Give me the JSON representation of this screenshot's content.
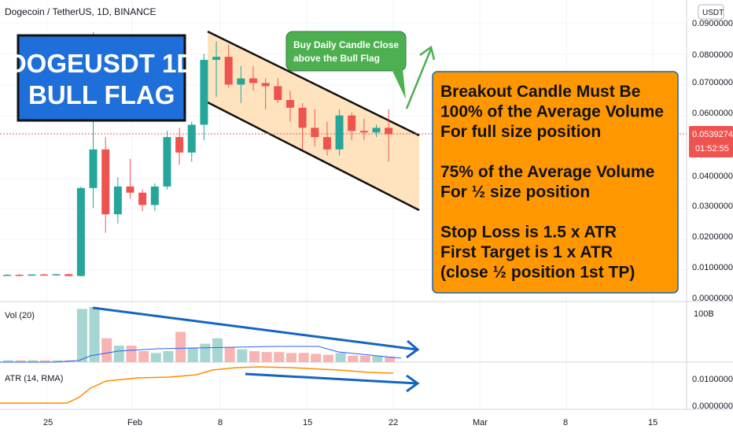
{
  "header": {
    "symbol_title": "Dogecoin / TetherUS, 1D, BINANCE",
    "currency_badge": "USDT"
  },
  "price_axis": {
    "ticks": [
      "0.0900000",
      "0.0800000",
      "0.0700000",
      "0.0600000",
      "0.0400000",
      "0.0300000",
      "0.0200000",
      "0.0100000",
      "0.0000000"
    ],
    "current_price": "0.0539274",
    "countdown": "01:52:55"
  },
  "volume_pane": {
    "label": "Vol (20)",
    "axis_label": "100B"
  },
  "atr_pane": {
    "label": "ATR (14, RMA)",
    "ticks": [
      "0.0100000",
      "0.0000000"
    ]
  },
  "time_axis": {
    "ticks": [
      "25",
      "Feb",
      "8",
      "15",
      "22",
      "Mar",
      "8",
      "15"
    ]
  },
  "annotations": {
    "title_line1": "DOGEUSDT 1D",
    "title_line2": "BULL FLAG",
    "callout_line1": "Buy Daily Candle Close",
    "callout_line2": "above the Bull Flag",
    "rules": [
      "Breakout Candle Must Be",
      "100% of the Average Volume",
      "For full size position",
      "",
      "75% of the Average Volume",
      "For ½ size position",
      "",
      "Stop Loss is 1.5 x ATR",
      "First Target is 1 x ATR",
      "(close ½ position 1st TP)"
    ]
  },
  "colors": {
    "up": "#26a69a",
    "down": "#ef5350",
    "flag_fill": "#ffd9a8",
    "box_orange": "#ff9800",
    "title_blue": "#1e6fd9",
    "callout_green": "#4caf50",
    "arrow_blue": "#1565c0",
    "atr_line": "#ff8c00"
  },
  "chart_data": [
    {
      "type": "candlestick",
      "title": "Dogecoin / TetherUS, 1D, BINANCE",
      "ylim": [
        0,
        0.09
      ],
      "candles": [
        {
          "o": 0.0083,
          "h": 0.0086,
          "l": 0.0081,
          "c": 0.0084
        },
        {
          "o": 0.0084,
          "h": 0.0087,
          "l": 0.0082,
          "c": 0.0083
        },
        {
          "o": 0.0083,
          "h": 0.0086,
          "l": 0.0082,
          "c": 0.0085
        },
        {
          "o": 0.0085,
          "h": 0.0088,
          "l": 0.0083,
          "c": 0.0084
        },
        {
          "o": 0.0084,
          "h": 0.0087,
          "l": 0.0082,
          "c": 0.0086
        },
        {
          "o": 0.0086,
          "h": 0.0088,
          "l": 0.0081,
          "c": 0.008
        },
        {
          "o": 0.008,
          "h": 0.037,
          "l": 0.0079,
          "c": 0.0365
        },
        {
          "o": 0.0365,
          "h": 0.087,
          "l": 0.03,
          "c": 0.049
        },
        {
          "o": 0.049,
          "h": 0.053,
          "l": 0.022,
          "c": 0.028
        },
        {
          "o": 0.028,
          "h": 0.04,
          "l": 0.025,
          "c": 0.037
        },
        {
          "o": 0.037,
          "h": 0.046,
          "l": 0.033,
          "c": 0.035
        },
        {
          "o": 0.035,
          "h": 0.036,
          "l": 0.029,
          "c": 0.031
        },
        {
          "o": 0.031,
          "h": 0.038,
          "l": 0.029,
          "c": 0.037
        },
        {
          "o": 0.037,
          "h": 0.055,
          "l": 0.036,
          "c": 0.053
        },
        {
          "o": 0.053,
          "h": 0.056,
          "l": 0.044,
          "c": 0.048
        },
        {
          "o": 0.048,
          "h": 0.058,
          "l": 0.045,
          "c": 0.057
        },
        {
          "o": 0.057,
          "h": 0.08,
          "l": 0.052,
          "c": 0.078
        },
        {
          "o": 0.078,
          "h": 0.084,
          "l": 0.066,
          "c": 0.079
        },
        {
          "o": 0.079,
          "h": 0.083,
          "l": 0.069,
          "c": 0.07
        },
        {
          "o": 0.07,
          "h": 0.076,
          "l": 0.064,
          "c": 0.072
        },
        {
          "o": 0.072,
          "h": 0.076,
          "l": 0.068,
          "c": 0.0705
        },
        {
          "o": 0.0705,
          "h": 0.072,
          "l": 0.062,
          "c": 0.0695
        },
        {
          "o": 0.0695,
          "h": 0.072,
          "l": 0.064,
          "c": 0.065
        },
        {
          "o": 0.065,
          "h": 0.068,
          "l": 0.058,
          "c": 0.0625
        },
        {
          "o": 0.0625,
          "h": 0.064,
          "l": 0.049,
          "c": 0.056
        },
        {
          "o": 0.056,
          "h": 0.062,
          "l": 0.05,
          "c": 0.053
        },
        {
          "o": 0.053,
          "h": 0.058,
          "l": 0.047,
          "c": 0.049
        },
        {
          "o": 0.049,
          "h": 0.062,
          "l": 0.047,
          "c": 0.06
        },
        {
          "o": 0.06,
          "h": 0.061,
          "l": 0.052,
          "c": 0.055
        },
        {
          "o": 0.055,
          "h": 0.059,
          "l": 0.052,
          "c": 0.0545
        },
        {
          "o": 0.0545,
          "h": 0.057,
          "l": 0.053,
          "c": 0.056
        },
        {
          "o": 0.056,
          "h": 0.062,
          "l": 0.045,
          "c": 0.0539
        }
      ]
    }
  ]
}
